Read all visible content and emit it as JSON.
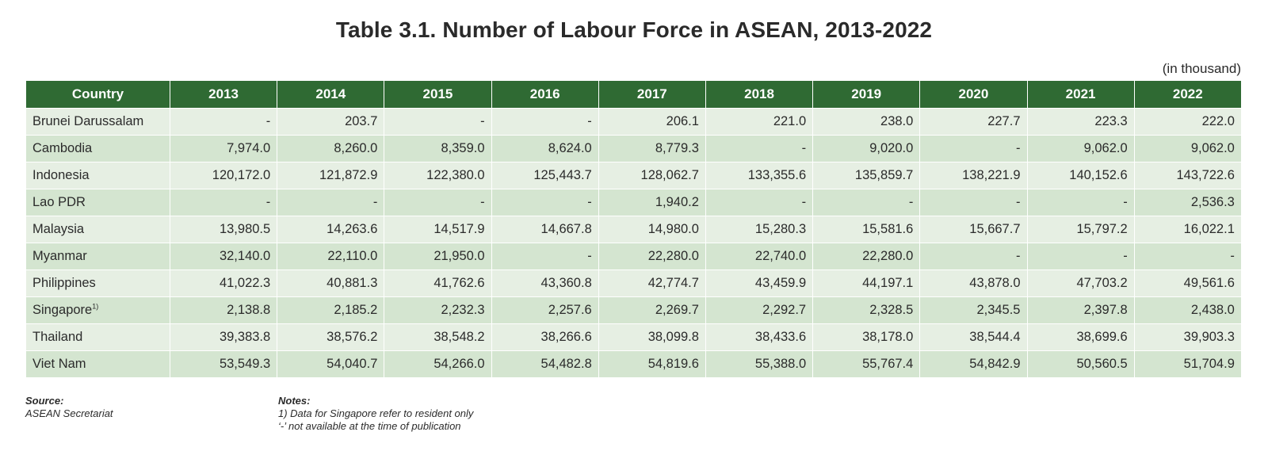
{
  "title": "Table 3.1. Number of Labour Force in ASEAN, 2013-2022",
  "unit": "(in thousand)",
  "colors": {
    "header_bg": "#2f6a33",
    "row_light": "#e6efe3",
    "row_dark": "#d4e5d0"
  },
  "table": {
    "headers": [
      "Country",
      "2013",
      "2014",
      "2015",
      "2016",
      "2017",
      "2018",
      "2019",
      "2020",
      "2021",
      "2022"
    ],
    "rows": [
      {
        "country": "Brunei Darussalam",
        "footnote": "",
        "values": [
          "-",
          "203.7",
          "-",
          "-",
          "206.1",
          "221.0",
          "238.0",
          "227.7",
          "223.3",
          "222.0"
        ]
      },
      {
        "country": "Cambodia",
        "footnote": "",
        "values": [
          "7,974.0",
          "8,260.0",
          "8,359.0",
          "8,624.0",
          "8,779.3",
          "-",
          "9,020.0",
          "-",
          "9,062.0",
          "9,062.0"
        ]
      },
      {
        "country": "Indonesia",
        "footnote": "",
        "values": [
          "120,172.0",
          "121,872.9",
          "122,380.0",
          "125,443.7",
          "128,062.7",
          "133,355.6",
          "135,859.7",
          "138,221.9",
          "140,152.6",
          "143,722.6"
        ]
      },
      {
        "country": "Lao PDR",
        "footnote": "",
        "values": [
          "-",
          "-",
          "-",
          "-",
          "1,940.2",
          "-",
          "-",
          "-",
          "-",
          "2,536.3"
        ]
      },
      {
        "country": "Malaysia",
        "footnote": "",
        "values": [
          "13,980.5",
          "14,263.6",
          "14,517.9",
          "14,667.8",
          "14,980.0",
          "15,280.3",
          "15,581.6",
          "15,667.7",
          "15,797.2",
          "16,022.1"
        ]
      },
      {
        "country": "Myanmar",
        "footnote": "",
        "values": [
          "32,140.0",
          "22,110.0",
          "21,950.0",
          "-",
          "22,280.0",
          "22,740.0",
          "22,280.0",
          "-",
          "-",
          "-"
        ]
      },
      {
        "country": "Philippines",
        "footnote": "",
        "values": [
          "41,022.3",
          "40,881.3",
          "41,762.6",
          "43,360.8",
          "42,774.7",
          "43,459.9",
          "44,197.1",
          "43,878.0",
          "47,703.2",
          "49,561.6"
        ]
      },
      {
        "country": "Singapore",
        "footnote": "1)",
        "values": [
          "2,138.8",
          "2,185.2",
          "2,232.3",
          "2,257.6",
          "2,269.7",
          "2,292.7",
          "2,328.5",
          "2,345.5",
          "2,397.8",
          "2,438.0"
        ]
      },
      {
        "country": "Thailand",
        "footnote": "",
        "values": [
          "39,383.8",
          "38,576.2",
          "38,548.2",
          "38,266.6",
          "38,099.8",
          "38,433.6",
          "38,178.0",
          "38,544.4",
          "38,699.6",
          "39,903.3"
        ]
      },
      {
        "country": "Viet Nam",
        "footnote": "",
        "values": [
          "53,549.3",
          "54,040.7",
          "54,266.0",
          "54,482.8",
          "54,819.6",
          "55,388.0",
          "55,767.4",
          "54,842.9",
          "50,560.5",
          "51,704.9"
        ]
      }
    ]
  },
  "source": {
    "label": "Source:",
    "text": "ASEAN Secretariat"
  },
  "notes": {
    "label": "Notes:",
    "lines": [
      "1)  Data for Singapore refer to resident only",
      "‘-’  not available at the time of publication"
    ]
  }
}
